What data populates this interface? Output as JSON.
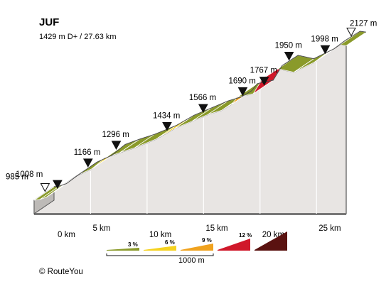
{
  "chart_data": {
    "type": "area",
    "title": "JUF",
    "subtitle": "1429 m D+ / 27.63 km",
    "xlabel": "",
    "ylabel": "",
    "xlim": [
      0,
      27.63
    ],
    "ylim": [
      985,
      2127
    ],
    "x_ticks": [
      0,
      5,
      10,
      15,
      20,
      25
    ],
    "x_tick_labels": [
      "0 km",
      "5 km",
      "10 km",
      "15 km",
      "20 km",
      "25 km"
    ],
    "profile": [
      {
        "x": 0.0,
        "y": 985
      },
      {
        "x": 0.5,
        "y": 990
      },
      {
        "x": 1.1,
        "y": 1008
      },
      {
        "x": 2.2,
        "y": 1075
      },
      {
        "x": 3.8,
        "y": 1166
      },
      {
        "x": 5.1,
        "y": 1215
      },
      {
        "x": 6.3,
        "y": 1296
      },
      {
        "x": 7.6,
        "y": 1335
      },
      {
        "x": 8.9,
        "y": 1370
      },
      {
        "x": 10.8,
        "y": 1434
      },
      {
        "x": 12.4,
        "y": 1510
      },
      {
        "x": 14.0,
        "y": 1566
      },
      {
        "x": 15.4,
        "y": 1615
      },
      {
        "x": 16.6,
        "y": 1645
      },
      {
        "x": 17.5,
        "y": 1690
      },
      {
        "x": 18.0,
        "y": 1742
      },
      {
        "x": 19.4,
        "y": 1767
      },
      {
        "x": 20.2,
        "y": 1875
      },
      {
        "x": 21.6,
        "y": 1950
      },
      {
        "x": 23.0,
        "y": 1925
      },
      {
        "x": 24.8,
        "y": 1998
      },
      {
        "x": 25.8,
        "y": 2060
      },
      {
        "x": 27.1,
        "y": 2127
      },
      {
        "x": 27.63,
        "y": 2120
      }
    ],
    "markers": [
      {
        "x": 0.0,
        "label": "985 m",
        "symbol": "start"
      },
      {
        "x": 1.1,
        "label": "1008 m",
        "symbol": "waypoint"
      },
      {
        "x": 3.8,
        "label": "1166 m",
        "symbol": "waypoint"
      },
      {
        "x": 6.3,
        "label": "1296 m",
        "symbol": "waypoint"
      },
      {
        "x": 10.8,
        "label": "1434 m",
        "symbol": "waypoint"
      },
      {
        "x": 14.0,
        "label": "1566 m",
        "symbol": "waypoint"
      },
      {
        "x": 17.5,
        "label": "1690 m",
        "symbol": "waypoint"
      },
      {
        "x": 19.4,
        "label": "1767 m",
        "symbol": "waypoint"
      },
      {
        "x": 21.6,
        "label": "1950 m",
        "symbol": "waypoint"
      },
      {
        "x": 24.8,
        "label": "1998 m",
        "symbol": "waypoint"
      },
      {
        "x": 27.1,
        "label": "2127 m",
        "symbol": "end"
      }
    ],
    "gradient_legend": [
      {
        "label": "3 %",
        "color": "#8A9A2A"
      },
      {
        "label": "6 %",
        "color": "#F5D21E"
      },
      {
        "label": "9 %",
        "color": "#F0A21E"
      },
      {
        "label": "12 %",
        "color": "#D0182A"
      },
      {
        "label": "",
        "color": "#5A1210"
      }
    ],
    "scale_label": "1000 m"
  },
  "colors": {
    "side_fill": "#E8E5E3",
    "side_stroke": "#555555",
    "bottom_rim": "#777777",
    "top_outline": "#4A4A4A",
    "marker": "#111111"
  },
  "copyright": "© RouteYou"
}
